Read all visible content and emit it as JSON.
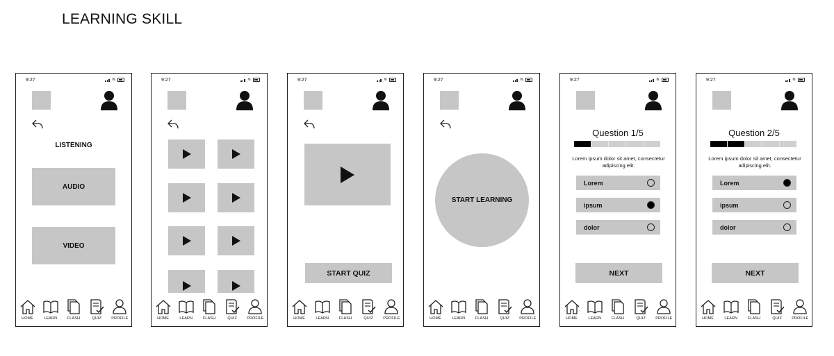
{
  "page_title": "LEARNING SKILL",
  "status_time": "9:27",
  "nav": [
    {
      "label": "HOME",
      "icon": "home-icon"
    },
    {
      "label": "LEARN",
      "icon": "book-icon"
    },
    {
      "label": "FLASH",
      "icon": "flashcards-icon"
    },
    {
      "label": "QUIZ",
      "icon": "quiz-icon"
    },
    {
      "label": "PROFILE",
      "icon": "profile-icon"
    }
  ],
  "screen1": {
    "heading": "LISTENING",
    "audio_label": "AUDIO",
    "video_label": "VIDEO"
  },
  "screen3": {
    "start_quiz_label": "START QUIZ"
  },
  "screen4": {
    "start_learning_label": "START LEARNING"
  },
  "screen5": {
    "question_title": "Question 1/5",
    "progress": 0.2,
    "question_text": "Lorem ipsum dolor sit amet, consectetur adipiscing elit.",
    "options": [
      {
        "label": "Lorem",
        "selected": false
      },
      {
        "label": "ipsum",
        "selected": true
      },
      {
        "label": "dolor",
        "selected": false
      }
    ],
    "next_label": "NEXT"
  },
  "screen6": {
    "question_title": "Question 2/5",
    "progress": 0.4,
    "question_text": "Lorem ipsum dolor sit amet, consectetur adipiscing elit.",
    "options": [
      {
        "label": "Lorem",
        "selected": true
      },
      {
        "label": "ipsum",
        "selected": false
      },
      {
        "label": "dolor",
        "selected": false
      }
    ],
    "next_label": "NEXT"
  },
  "colors": {
    "placeholder_gray": "#c6c6c6",
    "ink": "#111111",
    "progress_fill": "#000000"
  }
}
